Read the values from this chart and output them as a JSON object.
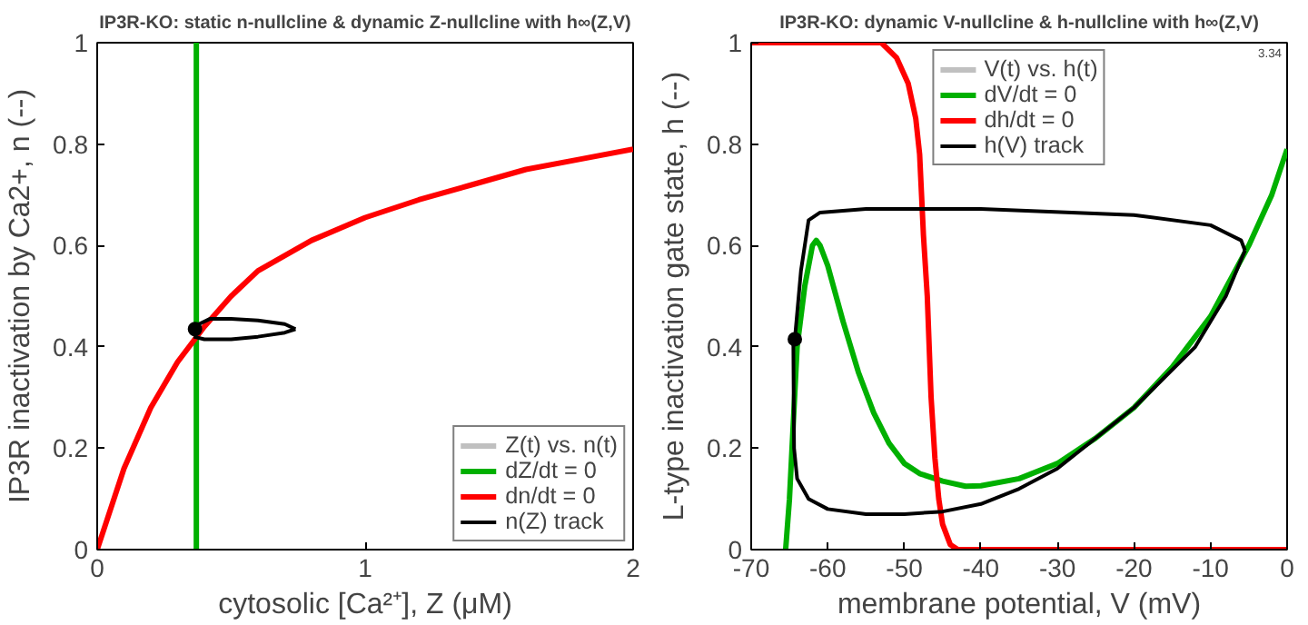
{
  "chart_data": [
    {
      "type": "line",
      "title": "IP3R-KO: static n-nullcline & dynamic Z-nullcline with h∞(Z,V)",
      "xlabel": "cytosolic [Ca²⁺], Z (μM)",
      "ylabel": "IP3R inactivation by Ca2+, n (--)",
      "xlim": [
        0,
        2
      ],
      "ylim": [
        0,
        1
      ],
      "xticks": [
        0,
        1,
        2
      ],
      "yticks": [
        0,
        0.2,
        0.4,
        0.6,
        0.8,
        1
      ],
      "grid": false,
      "legend": "bottom right",
      "line_style": "solid",
      "series": [
        {
          "name": "Z(t) vs. n(t)",
          "color": "#c0c0c0"
        },
        {
          "name": "dZ/dt = 0",
          "color": "#00b000",
          "x": [
            0.37,
            0.37
          ],
          "values": [
            0,
            1
          ]
        },
        {
          "name": "dn/dt = 0",
          "color": "#ff0000",
          "x": [
            0,
            0.1,
            0.2,
            0.3,
            0.35,
            0.4,
            0.5,
            0.6,
            0.8,
            1.0,
            1.2,
            1.4,
            1.6,
            1.8,
            2.0
          ],
          "values": [
            0,
            0.16,
            0.28,
            0.37,
            0.405,
            0.44,
            0.5,
            0.55,
            0.61,
            0.655,
            0.69,
            0.72,
            0.75,
            0.77,
            0.79
          ]
        },
        {
          "name": "n(Z) track",
          "color": "#000000",
          "x": [
            0.36,
            0.4,
            0.5,
            0.6,
            0.7,
            0.74
          ],
          "values": [
            0.42,
            0.415,
            0.415,
            0.42,
            0.428,
            0.435
          ]
        },
        {
          "type": "line",
          "color": "#000000",
          "x": [
            0.36,
            0.38,
            0.42,
            0.5,
            0.6,
            0.7,
            0.74
          ],
          "values": [
            0.43,
            0.445,
            0.455,
            0.455,
            0.452,
            0.445,
            0.435
          ]
        },
        {
          "type": "scatter",
          "marker": "circle",
          "color": "#000000",
          "x": [
            0.365
          ],
          "values": [
            0.435
          ]
        }
      ]
    },
    {
      "type": "line",
      "title": "IP3R-KO: dynamic V-nullcline & h-nullcline with h∞(Z,V)",
      "xlabel": "membrane potential, V (mV)",
      "ylabel": "L-type inactivation gate state, h (--)",
      "xlim": [
        -70,
        0
      ],
      "ylim": [
        0,
        1
      ],
      "xticks": [
        -70,
        -60,
        -50,
        -40,
        -30,
        -20,
        -10,
        0
      ],
      "yticks": [
        0,
        0.2,
        0.4,
        0.6,
        0.8,
        1
      ],
      "grid": false,
      "legend": "top",
      "line_style": "solid",
      "annotations": [
        "3.34"
      ],
      "series": [
        {
          "name": "V(t) vs. h(t)",
          "color": "#c0c0c0"
        },
        {
          "name": "dV/dt = 0",
          "color": "#00b000",
          "x": [
            -65.5,
            -65,
            -64.5,
            -64,
            -63,
            -62,
            -61.5,
            -61,
            -60,
            -58,
            -56,
            -54,
            -52,
            -50,
            -48,
            -45,
            -42,
            -40,
            -35,
            -30,
            -25,
            -20,
            -15,
            -10,
            -5,
            -2,
            0
          ],
          "values": [
            0,
            0.1,
            0.25,
            0.4,
            0.52,
            0.6,
            0.61,
            0.6,
            0.56,
            0.45,
            0.35,
            0.27,
            0.21,
            0.17,
            0.15,
            0.135,
            0.125,
            0.126,
            0.14,
            0.17,
            0.22,
            0.28,
            0.36,
            0.46,
            0.6,
            0.7,
            0.79
          ]
        },
        {
          "name": "dh/dt = 0",
          "color": "#ff0000",
          "x": [
            -70,
            -53,
            -51,
            -49.5,
            -48.5,
            -48,
            -47.5,
            -47,
            -46.5,
            -46,
            -45.5,
            -45,
            -44,
            -43,
            0
          ],
          "values": [
            1,
            1,
            0.97,
            0.92,
            0.85,
            0.78,
            0.62,
            0.5,
            0.3,
            0.18,
            0.1,
            0.05,
            0.01,
            0,
            0
          ]
        },
        {
          "name": "h(V) track",
          "color": "#000000",
          "x": [
            -64.3,
            -63.5,
            -62.5,
            -61,
            -55,
            -40,
            -20,
            -10,
            -6,
            -5.5
          ],
          "values": [
            0.415,
            0.55,
            0.65,
            0.665,
            0.672,
            0.672,
            0.66,
            0.64,
            0.61,
            0.59
          ]
        },
        {
          "type": "line",
          "color": "#000000",
          "x": [
            -64.5,
            -64.45,
            -64.4,
            -64,
            -62.5,
            -60,
            -55,
            -50,
            -45,
            -40,
            -35,
            -30,
            -25,
            -20,
            -12,
            -8,
            -5.5
          ],
          "values": [
            0.415,
            0.3,
            0.2,
            0.14,
            0.1,
            0.08,
            0.07,
            0.07,
            0.075,
            0.09,
            0.12,
            0.16,
            0.22,
            0.28,
            0.4,
            0.5,
            0.59
          ]
        },
        {
          "type": "scatter",
          "marker": "circle",
          "color": "#000000",
          "x": [
            -64.3
          ],
          "values": [
            0.415
          ]
        }
      ]
    }
  ]
}
